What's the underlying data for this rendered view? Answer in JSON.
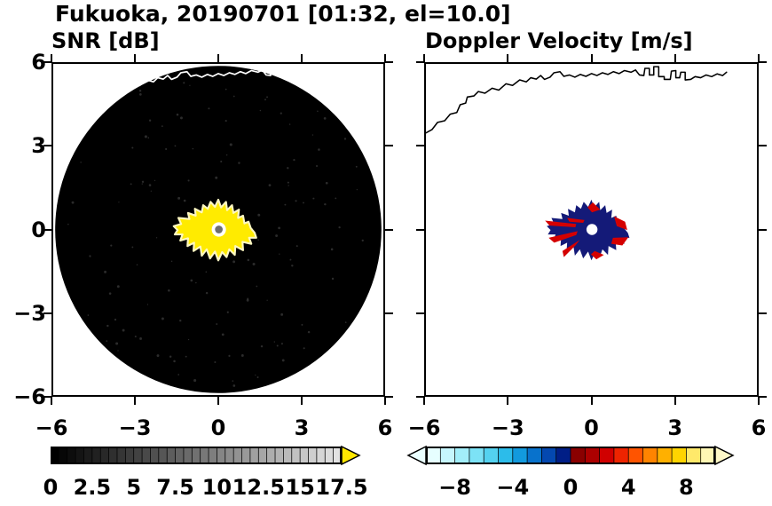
{
  "title": "Fukuoka, 20190701 [01:32, el=10.0]",
  "panels": [
    {
      "id": "snr",
      "title": "SNR [dB]",
      "x_ticks": [
        {
          "v": -6,
          "label": "−6"
        },
        {
          "v": -3,
          "label": "−3"
        },
        {
          "v": 0,
          "label": "0"
        },
        {
          "v": 3,
          "label": "3"
        },
        {
          "v": 6,
          "label": "6"
        }
      ],
      "y_ticks": [
        {
          "v": 6,
          "label": "6"
        },
        {
          "v": 3,
          "label": "3"
        },
        {
          "v": 0,
          "label": "0"
        },
        {
          "v": -3,
          "label": "−3"
        },
        {
          "v": -6,
          "label": "−6"
        }
      ]
    },
    {
      "id": "doppler",
      "title": "Doppler Velocity [m/s]",
      "x_ticks": [
        {
          "v": -6,
          "label": "−6"
        },
        {
          "v": -3,
          "label": "−3"
        },
        {
          "v": 0,
          "label": "0"
        },
        {
          "v": 3,
          "label": "3"
        },
        {
          "v": 6,
          "label": "6"
        }
      ]
    }
  ],
  "colorbars": {
    "snr": {
      "min": 0,
      "max": 17.5,
      "segments": 35,
      "gray_from": "#000000",
      "gray_to": "#e2e2e2",
      "over_arrow": "#ffe800",
      "ticks": [
        {
          "v": 0,
          "label": "0"
        },
        {
          "v": 2.5,
          "label": "2.5"
        },
        {
          "v": 5,
          "label": "5"
        },
        {
          "v": 7.5,
          "label": "7.5"
        },
        {
          "v": 10,
          "label": "10"
        },
        {
          "v": 12.5,
          "label": "12.5"
        },
        {
          "v": 15,
          "label": "15"
        },
        {
          "v": 17.5,
          "label": "17.5"
        }
      ]
    },
    "doppler": {
      "min": -10,
      "max": 10,
      "stops": [
        "#e6feff",
        "#c6f6fd",
        "#a2eefa",
        "#7ce2f6",
        "#54d2f0",
        "#2cbcea",
        "#129ade",
        "#0872cc",
        "#0448b0",
        "#001e86",
        "#8a0000",
        "#ac0000",
        "#d00000",
        "#ee2400",
        "#ff5400",
        "#ff8400",
        "#ffb000",
        "#ffd400",
        "#ffe96a",
        "#fff7b4"
      ],
      "under_arrow": "#eaffff",
      "over_arrow": "#fff9c8",
      "ticks": [
        {
          "v": -8,
          "label": "−8"
        },
        {
          "v": -4,
          "label": "−4"
        },
        {
          "v": 0,
          "label": "0"
        },
        {
          "v": 4,
          "label": "4"
        },
        {
          "v": 8,
          "label": "8"
        }
      ]
    }
  },
  "colors": {
    "snr_disk": "#000000",
    "snr_echo": "#ffeb00",
    "snr_echo_fringe": "#fdf7c0",
    "coast_snr": "#ffffff",
    "coast_vel": "#000000",
    "vel_navy": "#141a78",
    "vel_red": "#d40000",
    "site_ring": "#ffffff",
    "site_dot": "#6e6e6e"
  },
  "geometry": {
    "coastline": [
      [
        -6.0,
        3.5
      ],
      [
        -5.78,
        3.62
      ],
      [
        -5.58,
        3.88
      ],
      [
        -5.32,
        3.94
      ],
      [
        -5.12,
        4.18
      ],
      [
        -4.88,
        4.24
      ],
      [
        -4.76,
        4.52
      ],
      [
        -4.56,
        4.58
      ],
      [
        -4.5,
        4.8
      ],
      [
        -4.26,
        4.84
      ],
      [
        -4.1,
        5.0
      ],
      [
        -3.86,
        4.94
      ],
      [
        -3.6,
        5.12
      ],
      [
        -3.36,
        5.05
      ],
      [
        -3.1,
        5.28
      ],
      [
        -2.86,
        5.22
      ],
      [
        -2.6,
        5.42
      ],
      [
        -2.36,
        5.35
      ],
      [
        -2.2,
        5.5
      ],
      [
        -2.0,
        5.45
      ],
      [
        -1.84,
        5.58
      ],
      [
        -1.7,
        5.44
      ],
      [
        -1.5,
        5.52
      ],
      [
        -1.36,
        5.68
      ],
      [
        -1.14,
        5.72
      ],
      [
        -1.0,
        5.55
      ],
      [
        -0.8,
        5.6
      ],
      [
        -0.6,
        5.52
      ],
      [
        -0.4,
        5.62
      ],
      [
        -0.2,
        5.55
      ],
      [
        0.0,
        5.65
      ],
      [
        0.2,
        5.58
      ],
      [
        0.4,
        5.68
      ],
      [
        0.6,
        5.62
      ],
      [
        0.8,
        5.72
      ],
      [
        1.0,
        5.65
      ],
      [
        1.2,
        5.76
      ],
      [
        1.44,
        5.7
      ],
      [
        1.6,
        5.78
      ],
      [
        1.74,
        5.6
      ],
      [
        1.9,
        5.58
      ],
      [
        1.94,
        5.84
      ],
      [
        2.1,
        5.84
      ],
      [
        2.1,
        5.6
      ],
      [
        2.26,
        5.6
      ],
      [
        2.26,
        5.9
      ],
      [
        2.44,
        5.9
      ],
      [
        2.44,
        5.54
      ],
      [
        2.64,
        5.54
      ],
      [
        2.64,
        5.44
      ],
      [
        2.86,
        5.44
      ],
      [
        2.9,
        5.74
      ],
      [
        3.06,
        5.76
      ],
      [
        3.06,
        5.5
      ],
      [
        3.2,
        5.5
      ],
      [
        3.24,
        5.7
      ],
      [
        3.4,
        5.7
      ],
      [
        3.4,
        5.42
      ],
      [
        3.6,
        5.44
      ],
      [
        3.76,
        5.54
      ],
      [
        3.96,
        5.5
      ],
      [
        4.16,
        5.6
      ],
      [
        4.36,
        5.54
      ],
      [
        4.56,
        5.64
      ],
      [
        4.76,
        5.58
      ],
      [
        4.9,
        5.7
      ]
    ],
    "echo_blob": [
      [
        1.32,
        -0.12
      ],
      [
        1.18,
        0.05
      ],
      [
        1.1,
        0.28
      ],
      [
        0.95,
        0.22
      ],
      [
        0.9,
        0.5
      ],
      [
        0.72,
        0.42
      ],
      [
        0.75,
        0.72
      ],
      [
        0.55,
        0.6
      ],
      [
        0.5,
        0.88
      ],
      [
        0.32,
        0.7
      ],
      [
        0.28,
        1.0
      ],
      [
        0.1,
        0.8
      ],
      [
        0.0,
        1.08
      ],
      [
        -0.12,
        0.82
      ],
      [
        -0.28,
        1.0
      ],
      [
        -0.38,
        0.75
      ],
      [
        -0.55,
        0.88
      ],
      [
        -0.6,
        0.62
      ],
      [
        -0.85,
        0.75
      ],
      [
        -0.82,
        0.5
      ],
      [
        -1.1,
        0.6
      ],
      [
        -1.05,
        0.38
      ],
      [
        -1.45,
        0.42
      ],
      [
        -1.35,
        0.2
      ],
      [
        -1.62,
        0.12
      ],
      [
        -1.48,
        -0.02
      ],
      [
        -1.58,
        -0.18
      ],
      [
        -1.3,
        -0.18
      ],
      [
        -1.38,
        -0.4
      ],
      [
        -1.1,
        -0.32
      ],
      [
        -1.12,
        -0.6
      ],
      [
        -0.88,
        -0.48
      ],
      [
        -0.9,
        -0.78
      ],
      [
        -0.65,
        -0.62
      ],
      [
        -0.6,
        -0.95
      ],
      [
        -0.42,
        -0.72
      ],
      [
        -0.3,
        -1.05
      ],
      [
        -0.12,
        -0.8
      ],
      [
        0.0,
        -1.12
      ],
      [
        0.14,
        -0.82
      ],
      [
        0.3,
        -1.0
      ],
      [
        0.4,
        -0.72
      ],
      [
        0.6,
        -0.92
      ],
      [
        0.62,
        -0.6
      ],
      [
        0.9,
        -0.75
      ],
      [
        0.88,
        -0.45
      ],
      [
        1.2,
        -0.52
      ],
      [
        1.12,
        -0.3
      ],
      [
        1.38,
        -0.3
      ]
    ],
    "red_patches": [
      [
        [
          -1.68,
          0.32
        ],
        [
          -0.55,
          0.2
        ],
        [
          -0.58,
          0.08
        ],
        [
          -1.52,
          0.14
        ]
      ],
      [
        [
          -1.55,
          -0.3
        ],
        [
          -0.5,
          -0.06
        ],
        [
          -0.55,
          -0.2
        ],
        [
          -1.35,
          -0.48
        ]
      ],
      [
        [
          -1.05,
          -0.78
        ],
        [
          -0.42,
          -0.38
        ],
        [
          -0.58,
          -0.58
        ],
        [
          -1.0,
          -1.0
        ]
      ],
      [
        [
          0.82,
          0.48
        ],
        [
          1.22,
          0.28
        ],
        [
          1.3,
          -0.02
        ],
        [
          0.92,
          0.12
        ]
      ],
      [
        [
          0.78,
          -0.3
        ],
        [
          1.34,
          -0.28
        ],
        [
          1.12,
          -0.58
        ],
        [
          0.72,
          -0.52
        ]
      ],
      [
        [
          0.05,
          0.98
        ],
        [
          0.32,
          0.72
        ],
        [
          0.02,
          0.62
        ],
        [
          -0.14,
          0.8
        ]
      ],
      [
        [
          0.12,
          -0.78
        ],
        [
          0.45,
          -0.92
        ],
        [
          0.18,
          -1.08
        ],
        [
          -0.02,
          -0.9
        ]
      ],
      [
        [
          -0.88,
          0.42
        ],
        [
          -0.25,
          0.34
        ],
        [
          -0.3,
          0.24
        ],
        [
          -0.8,
          0.28
        ]
      ]
    ]
  },
  "chart_data": [
    {
      "type": "heatmap",
      "subtype": "radar-ppi",
      "title": "SNR [dB]",
      "figure_title": "Fukuoka, 20190701 [01:32, el=10.0]",
      "xlim": [
        -6,
        6
      ],
      "ylim": [
        -6,
        6
      ],
      "xticks": [
        -6,
        -3,
        0,
        3,
        6
      ],
      "yticks": [
        -6,
        -3,
        0,
        3,
        6
      ],
      "grid": false,
      "colorbar": {
        "label": "SNR [dB]",
        "min": 0,
        "max": 17.5,
        "ticks": [
          0,
          2.5,
          5,
          7.5,
          10,
          12.5,
          15,
          17.5
        ],
        "colormap": "grayscale black-to-lightgray",
        "over_color": "yellow arrow"
      },
      "content": {
        "scan_disk": {
          "center": [
            0,
            0
          ],
          "radius": 5.95,
          "value": "low SNR noise, shown black"
        },
        "echo_region": {
          "x_range": [
            -1.6,
            1.4
          ],
          "y_range": [
            -1.1,
            1.1
          ],
          "value": "high SNR > 17.5 dB, shown saturated yellow"
        },
        "radar_site_marker": {
          "center": [
            0,
            0
          ],
          "radius": 0.26
        },
        "coastline": "Fukuoka coastline across top, drawn in white"
      }
    },
    {
      "type": "heatmap",
      "subtype": "radar-ppi",
      "title": "Doppler Velocity [m/s]",
      "xlim": [
        -6,
        6
      ],
      "ylim": [
        -6,
        6
      ],
      "xticks": [
        -6,
        -3,
        0,
        3,
        6
      ],
      "yticks": [
        -6,
        -3,
        0,
        3,
        6
      ],
      "grid": false,
      "colorbar": {
        "label": "Doppler Velocity [m/s]",
        "min": -10,
        "max": 10,
        "ticks": [
          -8,
          -4,
          0,
          4,
          8
        ],
        "colormap": "pale-cyan → cyan → blue → dark-navy | dark-red → red → orange → yellow → pale-yellow"
      },
      "content": {
        "echo_region": {
          "x_range": [
            -1.6,
            1.4
          ],
          "y_range": [
            -1.1,
            1.1
          ],
          "dominant_value": "≈ −1 m/s (dark navy)",
          "secondary_value": "small positive patches ≈ +1 to +3 m/s (red)"
        },
        "background": "white (no echo)",
        "radar_site_hole": {
          "center": [
            0,
            0
          ],
          "radius": 0.2
        },
        "coastline": "Fukuoka coastline across top, drawn in black"
      }
    }
  ]
}
